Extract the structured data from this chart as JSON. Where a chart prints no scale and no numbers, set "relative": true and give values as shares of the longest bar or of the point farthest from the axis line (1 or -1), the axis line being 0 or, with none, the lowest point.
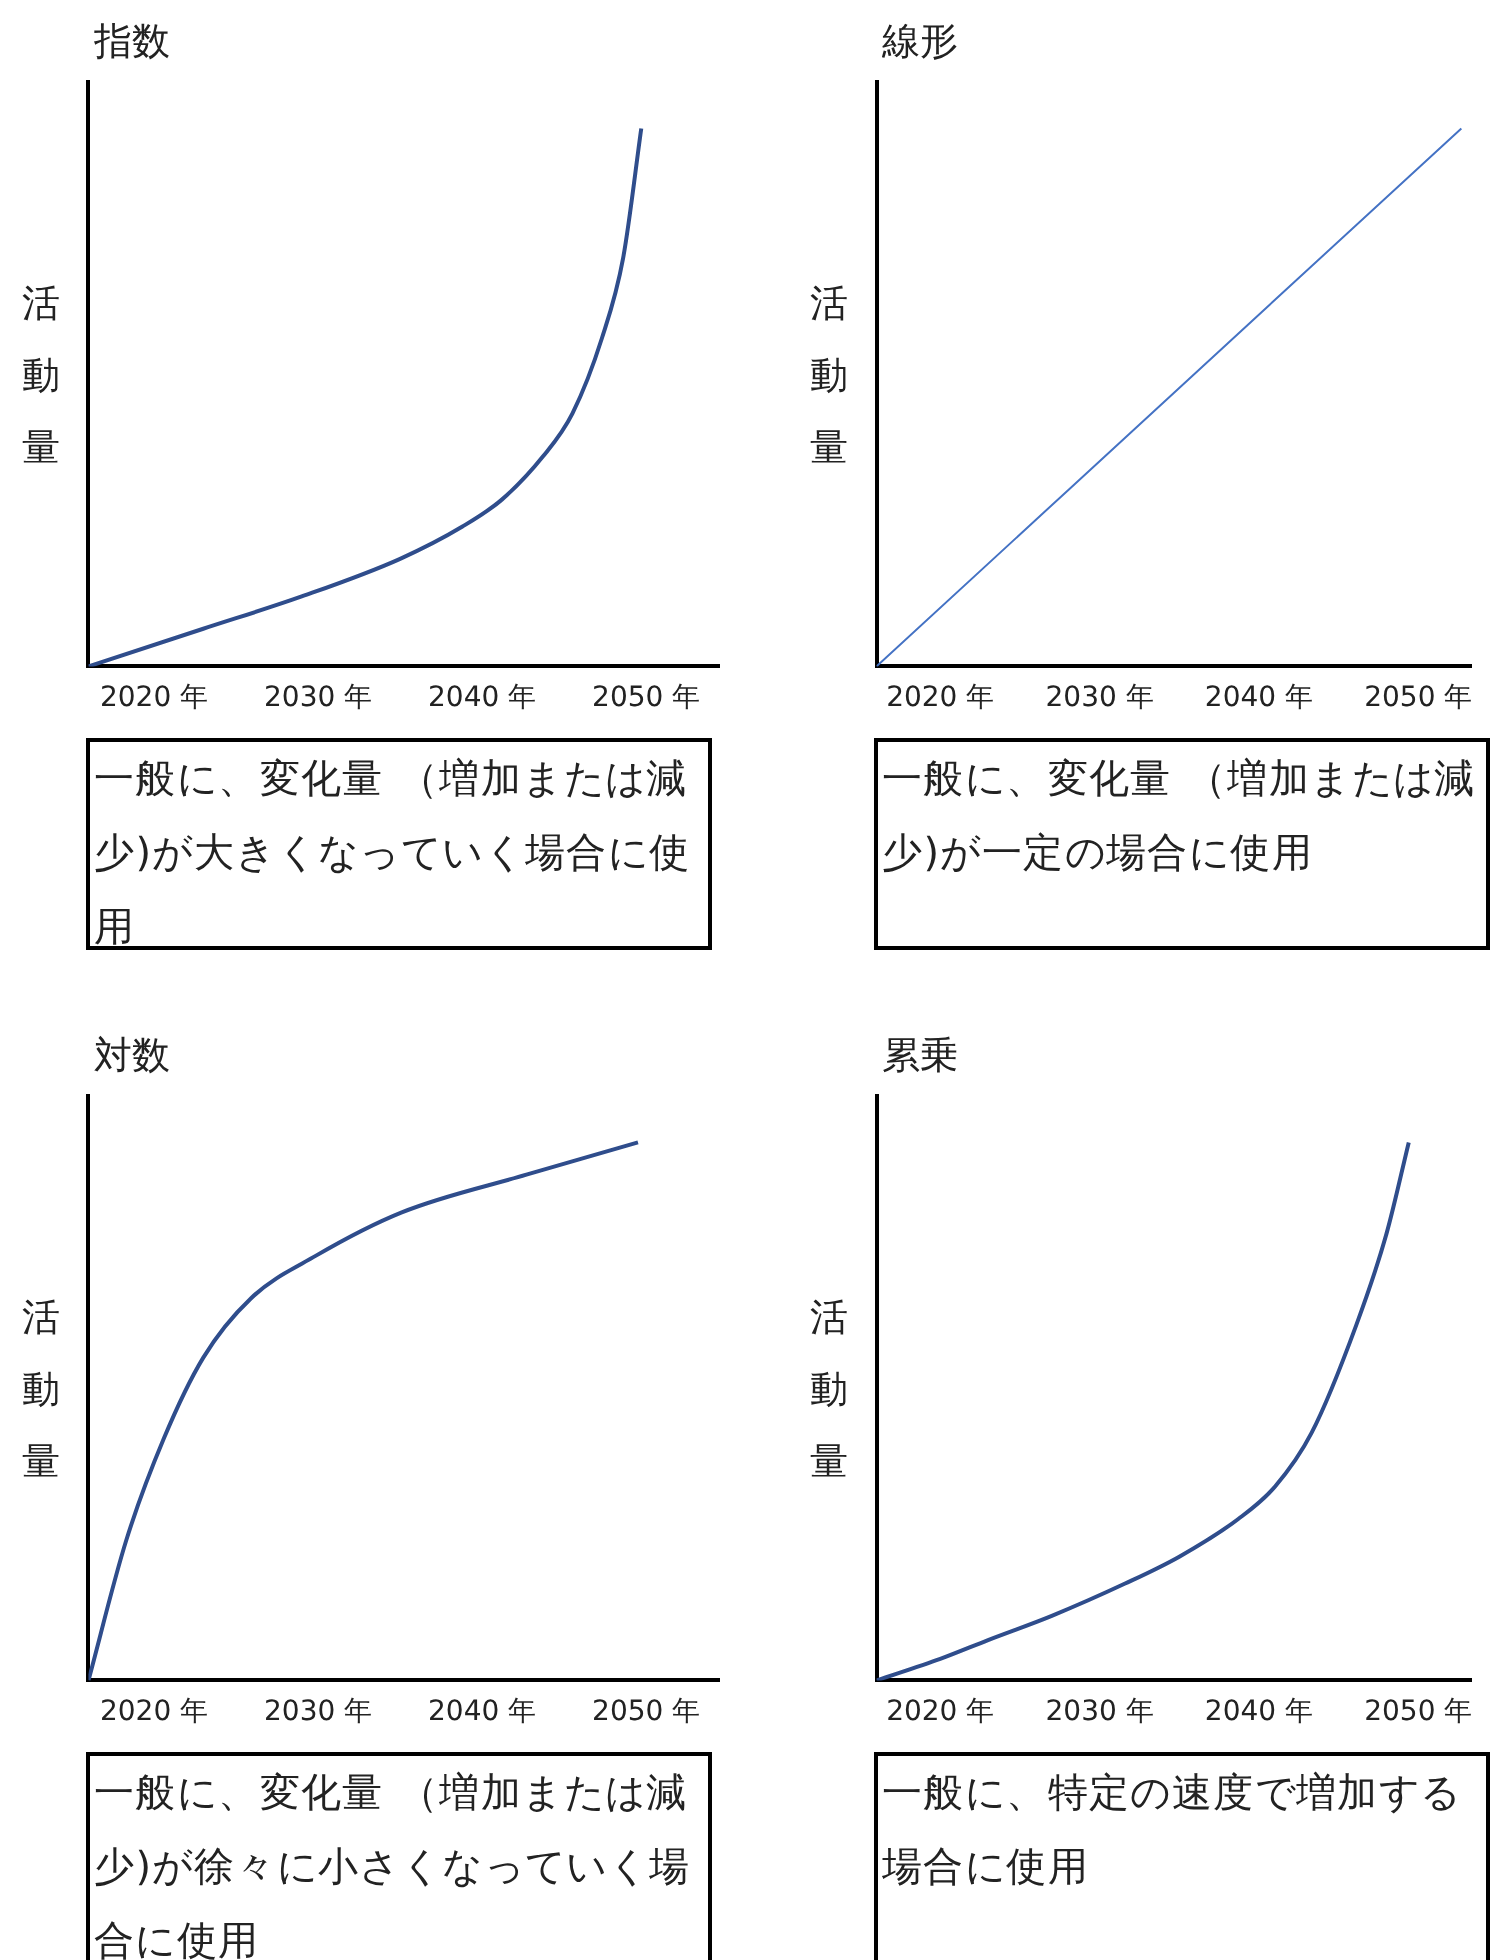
{
  "chart_data": [
    {
      "type": "line",
      "title": "指数",
      "ylabel": "活動量",
      "relative": true,
      "color": "#2f4d8c",
      "x": [
        2016,
        2023,
        2029,
        2035,
        2038.8,
        2041.2,
        2043.7,
        2045.5,
        2047.3,
        2048.6,
        2049.7
      ],
      "values": [
        0,
        0.07,
        0.13,
        0.2,
        0.26,
        0.31,
        0.39,
        0.47,
        0.61,
        0.76,
        1
      ],
      "xlim": [
        2016,
        2054.5
      ],
      "xticks": [
        {
          "value": 2020,
          "label": "2020 年"
        },
        {
          "value": 2030,
          "label": "2030 年"
        },
        {
          "value": 2040,
          "label": "2040 年"
        },
        {
          "value": 2050,
          "label": "2050 年"
        }
      ],
      "annotations": [
        "一般に、変化量 （増加または減少)が大きくなっていく場合に使用"
      ]
    },
    {
      "type": "line",
      "title": "線形",
      "ylabel": "活動量",
      "relative": true,
      "color": "#4472c4",
      "x": [
        2016,
        2052.7
      ],
      "values": [
        0,
        1
      ],
      "xlim": [
        2016,
        2053.3
      ],
      "xticks": [
        {
          "value": 2020,
          "label": "2020 年"
        },
        {
          "value": 2030,
          "label": "2030 年"
        },
        {
          "value": 2040,
          "label": "2040 年"
        },
        {
          "value": 2050,
          "label": "2050 年"
        }
      ],
      "annotations": [
        "一般に、変化量 （増加または減少)が一定の場合に使用"
      ]
    },
    {
      "type": "line",
      "title": "対数",
      "ylabel": "活動量",
      "relative": true,
      "color": "#2f4d8c",
      "x": [
        2016,
        2018.3,
        2020.6,
        2023,
        2025.9,
        2029.9,
        2035.1,
        2042.7,
        2049.5
      ],
      "values": [
        0,
        0.26,
        0.45,
        0.6,
        0.71,
        0.79,
        0.87,
        0.94,
        1
      ],
      "xlim": [
        2016,
        2054.5
      ],
      "xticks": [
        {
          "value": 2020,
          "label": "2020 年"
        },
        {
          "value": 2030,
          "label": "2030 年"
        },
        {
          "value": 2040,
          "label": "2040 年"
        },
        {
          "value": 2050,
          "label": "2050 年"
        }
      ],
      "annotations": [
        "一般に、変化量 （増加または減少)が徐々に小さくなっていく場合に使用"
      ]
    },
    {
      "type": "line",
      "title": "累乗",
      "ylabel": "活動量",
      "relative": true,
      "color": "#2f4d8c",
      "x": [
        2016,
        2020,
        2023,
        2027,
        2031.6,
        2035,
        2038.7,
        2041,
        2043.3,
        2046.1,
        2048,
        2049.4
      ],
      "values": [
        0,
        0.04,
        0.075,
        0.12,
        0.18,
        0.23,
        0.3,
        0.36,
        0.46,
        0.66,
        0.83,
        1
      ],
      "xlim": [
        2016,
        2053.3
      ],
      "xticks": [
        {
          "value": 2020,
          "label": "2020 年"
        },
        {
          "value": 2030,
          "label": "2030 年"
        },
        {
          "value": 2040,
          "label": "2040 年"
        },
        {
          "value": 2050,
          "label": "2050 年"
        }
      ],
      "annotations": [
        "一般に、特定の速度で増加する場合に使用"
      ]
    }
  ]
}
